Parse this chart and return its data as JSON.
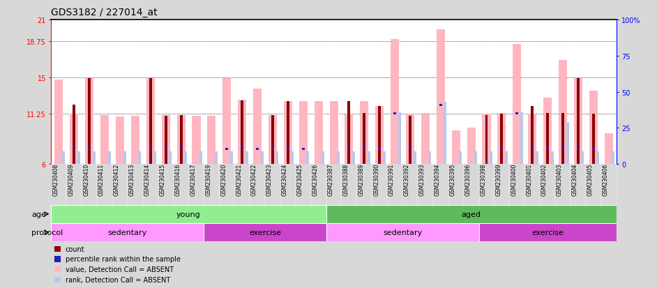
{
  "title": "GDS3182 / 227014_at",
  "samples": [
    "GSM230408",
    "GSM230409",
    "GSM230410",
    "GSM230411",
    "GSM230412",
    "GSM230413",
    "GSM230414",
    "GSM230415",
    "GSM230416",
    "GSM230417",
    "GSM230419",
    "GSM230420",
    "GSM230421",
    "GSM230422",
    "GSM230423",
    "GSM230424",
    "GSM230425",
    "GSM230426",
    "GSM230387",
    "GSM230388",
    "GSM230389",
    "GSM230390",
    "GSM230391",
    "GSM230392",
    "GSM230393",
    "GSM230394",
    "GSM230395",
    "GSM230396",
    "GSM230398",
    "GSM230399",
    "GSM230400",
    "GSM230401",
    "GSM230402",
    "GSM230403",
    "GSM230404",
    "GSM230405",
    "GSM230406"
  ],
  "value_absent": [
    14.8,
    11.2,
    14.95,
    11.1,
    10.9,
    11.0,
    14.95,
    11.1,
    11.1,
    11.0,
    11.0,
    14.95,
    12.7,
    13.8,
    11.1,
    12.55,
    12.55,
    12.55,
    12.55,
    11.2,
    12.55,
    12.0,
    19.0,
    11.2,
    11.3,
    20.0,
    9.5,
    9.8,
    11.2,
    11.3,
    18.5,
    11.2,
    12.9,
    16.8,
    14.95,
    13.6,
    9.2
  ],
  "rank_absent": [
    9.0,
    9.0,
    9.0,
    9.0,
    9.0,
    9.0,
    9.0,
    9.0,
    9.0,
    9.0,
    9.0,
    9.0,
    9.0,
    9.0,
    9.0,
    9.0,
    9.0,
    9.0,
    9.0,
    9.0,
    9.0,
    9.0,
    36.0,
    9.0,
    9.0,
    43.0,
    9.0,
    9.0,
    9.0,
    9.0,
    36.0,
    9.0,
    9.0,
    29.0,
    9.0,
    9.0,
    9.0
  ],
  "count": [
    0,
    12.2,
    14.95,
    0,
    0,
    0,
    14.95,
    11.0,
    11.1,
    0,
    0,
    0,
    12.6,
    0,
    11.1,
    12.5,
    0,
    0,
    0,
    12.55,
    11.3,
    12.0,
    0,
    11.0,
    0,
    0,
    0,
    0,
    11.1,
    11.2,
    0,
    12.0,
    11.3,
    11.3,
    14.95,
    11.2,
    0
  ],
  "percentile": [
    0,
    10.5,
    10.5,
    0,
    0,
    0,
    10.5,
    10.5,
    10.5,
    0,
    0,
    10.5,
    10.5,
    10.5,
    10.5,
    10.5,
    10.5,
    0,
    0,
    10.5,
    10.5,
    10.5,
    35.0,
    10.5,
    0,
    41.0,
    0,
    0,
    0,
    10.5,
    35.0,
    10.5,
    10.5,
    10.5,
    10.5,
    10.5,
    0
  ],
  "ylim_left": [
    6,
    21
  ],
  "ylim_right": [
    0,
    100
  ],
  "yticks_left": [
    6,
    11.25,
    15,
    18.75,
    21
  ],
  "yticks_right": [
    0,
    25,
    50,
    75,
    100
  ],
  "ytick_labels_left": [
    "6",
    "11.25",
    "15",
    "18.75",
    "21"
  ],
  "ytick_labels_right": [
    "0",
    "25",
    "50",
    "75",
    "100%"
  ],
  "grid_lines": [
    11.25,
    15,
    18.75
  ],
  "age_groups": [
    {
      "label": "young",
      "start": 0,
      "end": 18,
      "color": "#90EE90"
    },
    {
      "label": "aged",
      "start": 18,
      "end": 37,
      "color": "#5DBB5D"
    }
  ],
  "protocol_groups": [
    {
      "label": "sedentary",
      "start": 0,
      "end": 10,
      "color": "#FF99FF"
    },
    {
      "label": "exercise",
      "start": 10,
      "end": 18,
      "color": "#CC44CC"
    },
    {
      "label": "sedentary",
      "start": 18,
      "end": 28,
      "color": "#FF99FF"
    },
    {
      "label": "exercise",
      "start": 28,
      "end": 37,
      "color": "#CC44CC"
    }
  ],
  "value_color": "#FFB6C1",
  "rank_color": "#B8C8E8",
  "count_color": "#8B0000",
  "percentile_color": "#2222BB",
  "bg_color": "#D8D8D8",
  "plot_bg": "#FFFFFF",
  "title_fontsize": 10,
  "tick_fontsize": 7,
  "label_fontsize": 8,
  "sample_fontsize": 5.5,
  "age_label": "age",
  "protocol_label": "protocol"
}
